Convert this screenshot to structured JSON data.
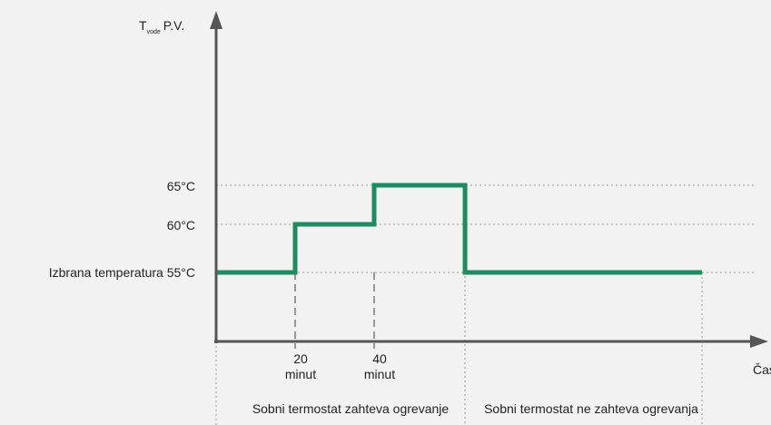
{
  "chart_data": {
    "type": "line",
    "title": "",
    "ylabel": {
      "main": "T",
      "subscript": "vode",
      "suffix": "P.V."
    },
    "xlabel": "Čas",
    "y_levels": [
      {
        "value": 55,
        "label": "Izbrana temperatura 55°C"
      },
      {
        "value": 60,
        "label": "60°C"
      },
      {
        "value": 65,
        "label": "65°C"
      }
    ],
    "x_ticks": [
      {
        "value": 20,
        "line1": "20",
        "line2": "minut"
      },
      {
        "value": 40,
        "line1": "40",
        "line2": "minut"
      }
    ],
    "series": [
      {
        "color": "#1e8c61",
        "points": [
          {
            "x": 0,
            "y": 55
          },
          {
            "x": 20,
            "y": 55
          },
          {
            "x": 20,
            "y": 60
          },
          {
            "x": 40,
            "y": 60
          },
          {
            "x": 40,
            "y": 65
          },
          {
            "x": 63,
            "y": 65
          },
          {
            "x": 63,
            "y": 55
          },
          {
            "x": 123,
            "y": 55
          }
        ]
      }
    ],
    "phases": [
      {
        "label": "Sobni termostat zahteva ogrevanje",
        "x_start": 0,
        "x_end": 63
      },
      {
        "label": "Sobni termostat ne zahteva ogrevanja",
        "x_start": 63,
        "x_end": 123
      }
    ],
    "colors": {
      "axis": "#555555",
      "grid": "#999999",
      "series": "#1e8c61"
    }
  }
}
